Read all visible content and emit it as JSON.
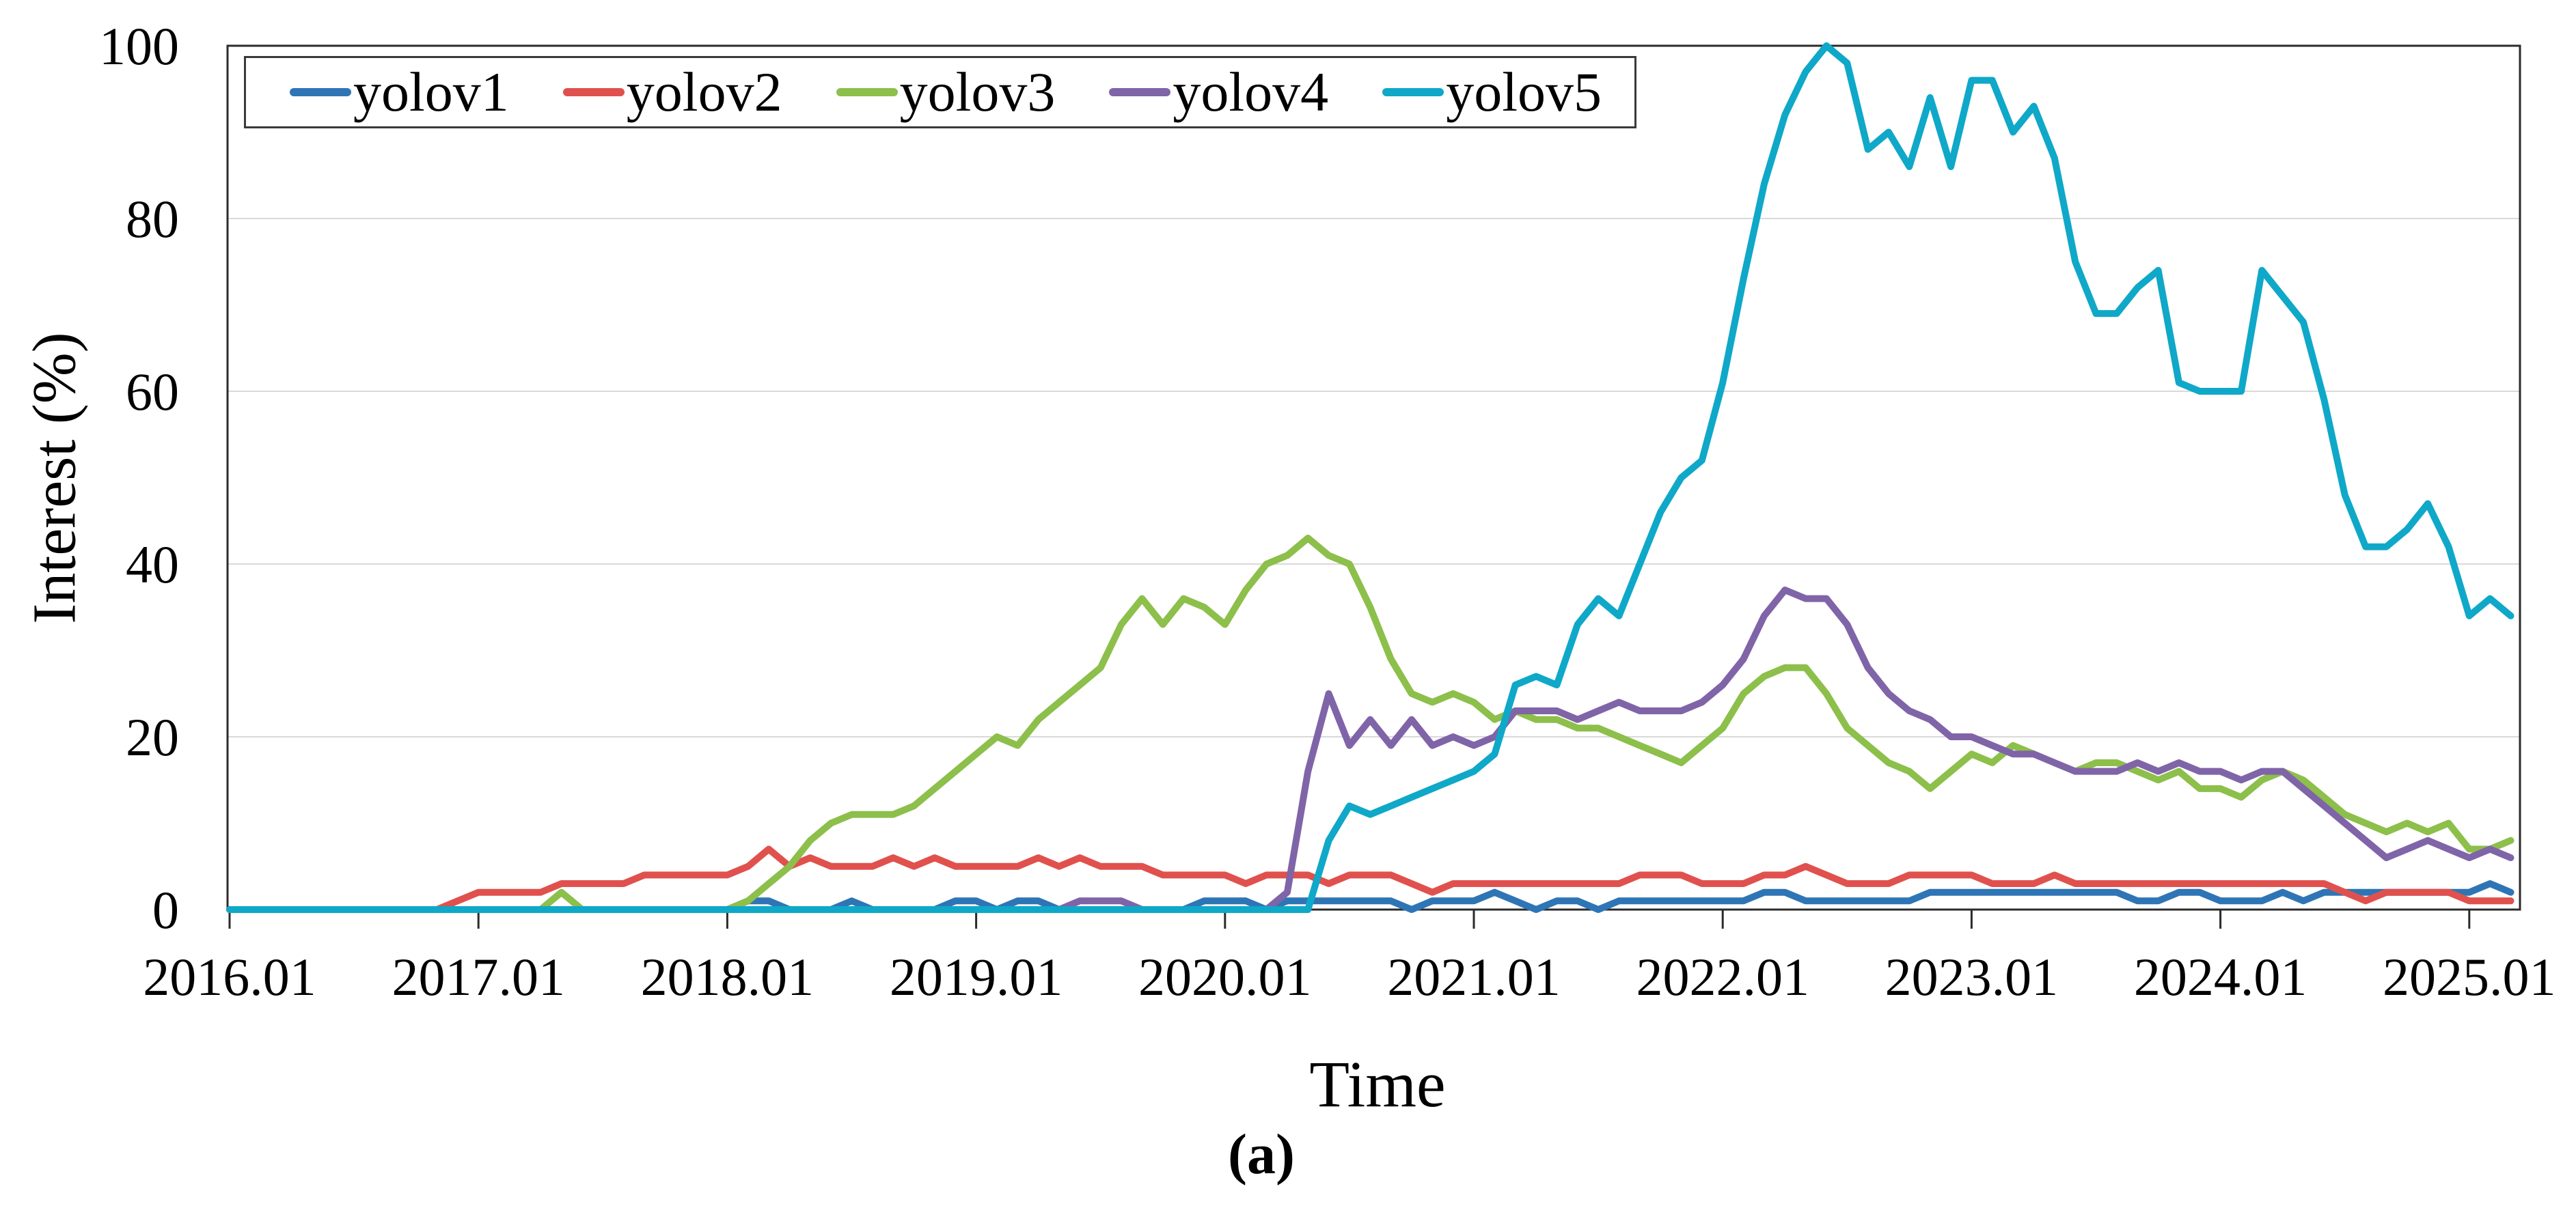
{
  "figure": {
    "caption": "(a)"
  },
  "chart_data": {
    "type": "line",
    "title": "",
    "xlabel": "Time",
    "ylabel": "Interest (%)",
    "ylim": [
      0,
      100
    ],
    "yticks": [
      0,
      20,
      40,
      60,
      80,
      100
    ],
    "xticklabels": [
      "2016.01",
      "2017.01",
      "2018.01",
      "2019.01",
      "2020.01",
      "2021.01",
      "2022.01",
      "2023.01",
      "2024.01",
      "2025.01"
    ],
    "x_frequency": "monthly",
    "x_start": "2016.01",
    "x_end": "2025.03",
    "grid": "horizontal light-gray lines at 20/40/60/80, full plot border",
    "legend_position": "top-left inside plot, horizontal, boxed",
    "axis_color": "#2b2b2b",
    "grid_color": "#d9d9d9",
    "series": [
      {
        "name": "yolov1",
        "color": "#2E75B6",
        "values": [
          0,
          0,
          0,
          0,
          0,
          0,
          0,
          0,
          0,
          0,
          0,
          0,
          0,
          0,
          0,
          0,
          0,
          0,
          0,
          0,
          0,
          0,
          0,
          0,
          0,
          1,
          1,
          0,
          0,
          0,
          1,
          0,
          0,
          0,
          0,
          1,
          1,
          0,
          1,
          1,
          0,
          0,
          0,
          0,
          0,
          0,
          0,
          1,
          1,
          1,
          0,
          1,
          1,
          1,
          1,
          1,
          1,
          0,
          1,
          1,
          1,
          2,
          1,
          0,
          1,
          1,
          0,
          1,
          1,
          1,
          1,
          1,
          1,
          1,
          2,
          2,
          1,
          1,
          1,
          1,
          1,
          1,
          2,
          2,
          2,
          2,
          2,
          2,
          2,
          2,
          2,
          2,
          1,
          1,
          2,
          2,
          1,
          1,
          1,
          2,
          1,
          2,
          2,
          2,
          2,
          2,
          2,
          2,
          2,
          3,
          2
        ]
      },
      {
        "name": "yolov2",
        "color": "#E0514E",
        "values": [
          0,
          0,
          0,
          0,
          0,
          0,
          0,
          0,
          0,
          0,
          0,
          1,
          2,
          2,
          2,
          2,
          3,
          3,
          3,
          3,
          4,
          4,
          4,
          4,
          4,
          5,
          7,
          5,
          6,
          5,
          5,
          5,
          6,
          5,
          6,
          5,
          5,
          5,
          5,
          6,
          5,
          6,
          5,
          5,
          5,
          4,
          4,
          4,
          4,
          3,
          4,
          4,
          4,
          3,
          4,
          4,
          4,
          3,
          2,
          3,
          3,
          3,
          3,
          3,
          3,
          3,
          3,
          3,
          4,
          4,
          4,
          3,
          3,
          3,
          4,
          4,
          5,
          4,
          3,
          3,
          3,
          4,
          4,
          4,
          4,
          3,
          3,
          3,
          4,
          3,
          3,
          3,
          3,
          3,
          3,
          3,
          3,
          3,
          3,
          3,
          3,
          3,
          2,
          1,
          2,
          2,
          2,
          2,
          1,
          1,
          1
        ]
      },
      {
        "name": "yolov3",
        "color": "#8DBF4B",
        "values": [
          0,
          0,
          0,
          0,
          0,
          0,
          0,
          0,
          0,
          0,
          0,
          0,
          0,
          0,
          0,
          0,
          2,
          0,
          0,
          0,
          0,
          0,
          0,
          0,
          0,
          1,
          3,
          5,
          8,
          10,
          11,
          11,
          11,
          12,
          14,
          16,
          18,
          20,
          19,
          22,
          24,
          26,
          28,
          33,
          36,
          33,
          36,
          35,
          33,
          37,
          40,
          41,
          43,
          41,
          40,
          35,
          29,
          25,
          24,
          25,
          24,
          22,
          23,
          22,
          22,
          21,
          21,
          20,
          19,
          18,
          17,
          19,
          21,
          25,
          27,
          28,
          28,
          25,
          21,
          19,
          17,
          16,
          14,
          16,
          18,
          17,
          19,
          18,
          17,
          16,
          17,
          17,
          16,
          15,
          16,
          14,
          14,
          13,
          15,
          16,
          15,
          13,
          11,
          10,
          9,
          10,
          9,
          10,
          7,
          7,
          8
        ]
      },
      {
        "name": "yolov4",
        "color": "#8064A8",
        "values": [
          0,
          0,
          0,
          0,
          0,
          0,
          0,
          0,
          0,
          0,
          0,
          0,
          0,
          0,
          0,
          0,
          0,
          0,
          0,
          0,
          0,
          0,
          0,
          0,
          0,
          0,
          0,
          0,
          0,
          0,
          0,
          0,
          0,
          0,
          0,
          0,
          0,
          0,
          0,
          0,
          0,
          1,
          1,
          1,
          0,
          0,
          0,
          0,
          0,
          0,
          0,
          2,
          16,
          25,
          19,
          22,
          19,
          22,
          19,
          20,
          19,
          20,
          23,
          23,
          23,
          22,
          23,
          24,
          23,
          23,
          23,
          24,
          26,
          29,
          34,
          37,
          36,
          36,
          33,
          28,
          25,
          23,
          22,
          20,
          20,
          19,
          18,
          18,
          17,
          16,
          16,
          16,
          17,
          16,
          17,
          16,
          16,
          15,
          16,
          16,
          14,
          12,
          10,
          8,
          6,
          7,
          8,
          7,
          6,
          7,
          6
        ]
      },
      {
        "name": "yolov5",
        "color": "#0FA8C8",
        "values": [
          0,
          0,
          0,
          0,
          0,
          0,
          0,
          0,
          0,
          0,
          0,
          0,
          0,
          0,
          0,
          0,
          0,
          0,
          0,
          0,
          0,
          0,
          0,
          0,
          0,
          0,
          0,
          0,
          0,
          0,
          0,
          0,
          0,
          0,
          0,
          0,
          0,
          0,
          0,
          0,
          0,
          0,
          0,
          0,
          0,
          0,
          0,
          0,
          0,
          0,
          0,
          0,
          0,
          8,
          12,
          11,
          12,
          13,
          14,
          15,
          16,
          18,
          26,
          27,
          26,
          33,
          36,
          34,
          40,
          46,
          50,
          52,
          61,
          73,
          84,
          92,
          97,
          100,
          98,
          88,
          90,
          86,
          94,
          86,
          96,
          96,
          90,
          93,
          87,
          75,
          69,
          69,
          72,
          74,
          61,
          60,
          60,
          60,
          74,
          71,
          68,
          59,
          48,
          42,
          42,
          44,
          47,
          42,
          34,
          36,
          34
        ]
      }
    ]
  }
}
